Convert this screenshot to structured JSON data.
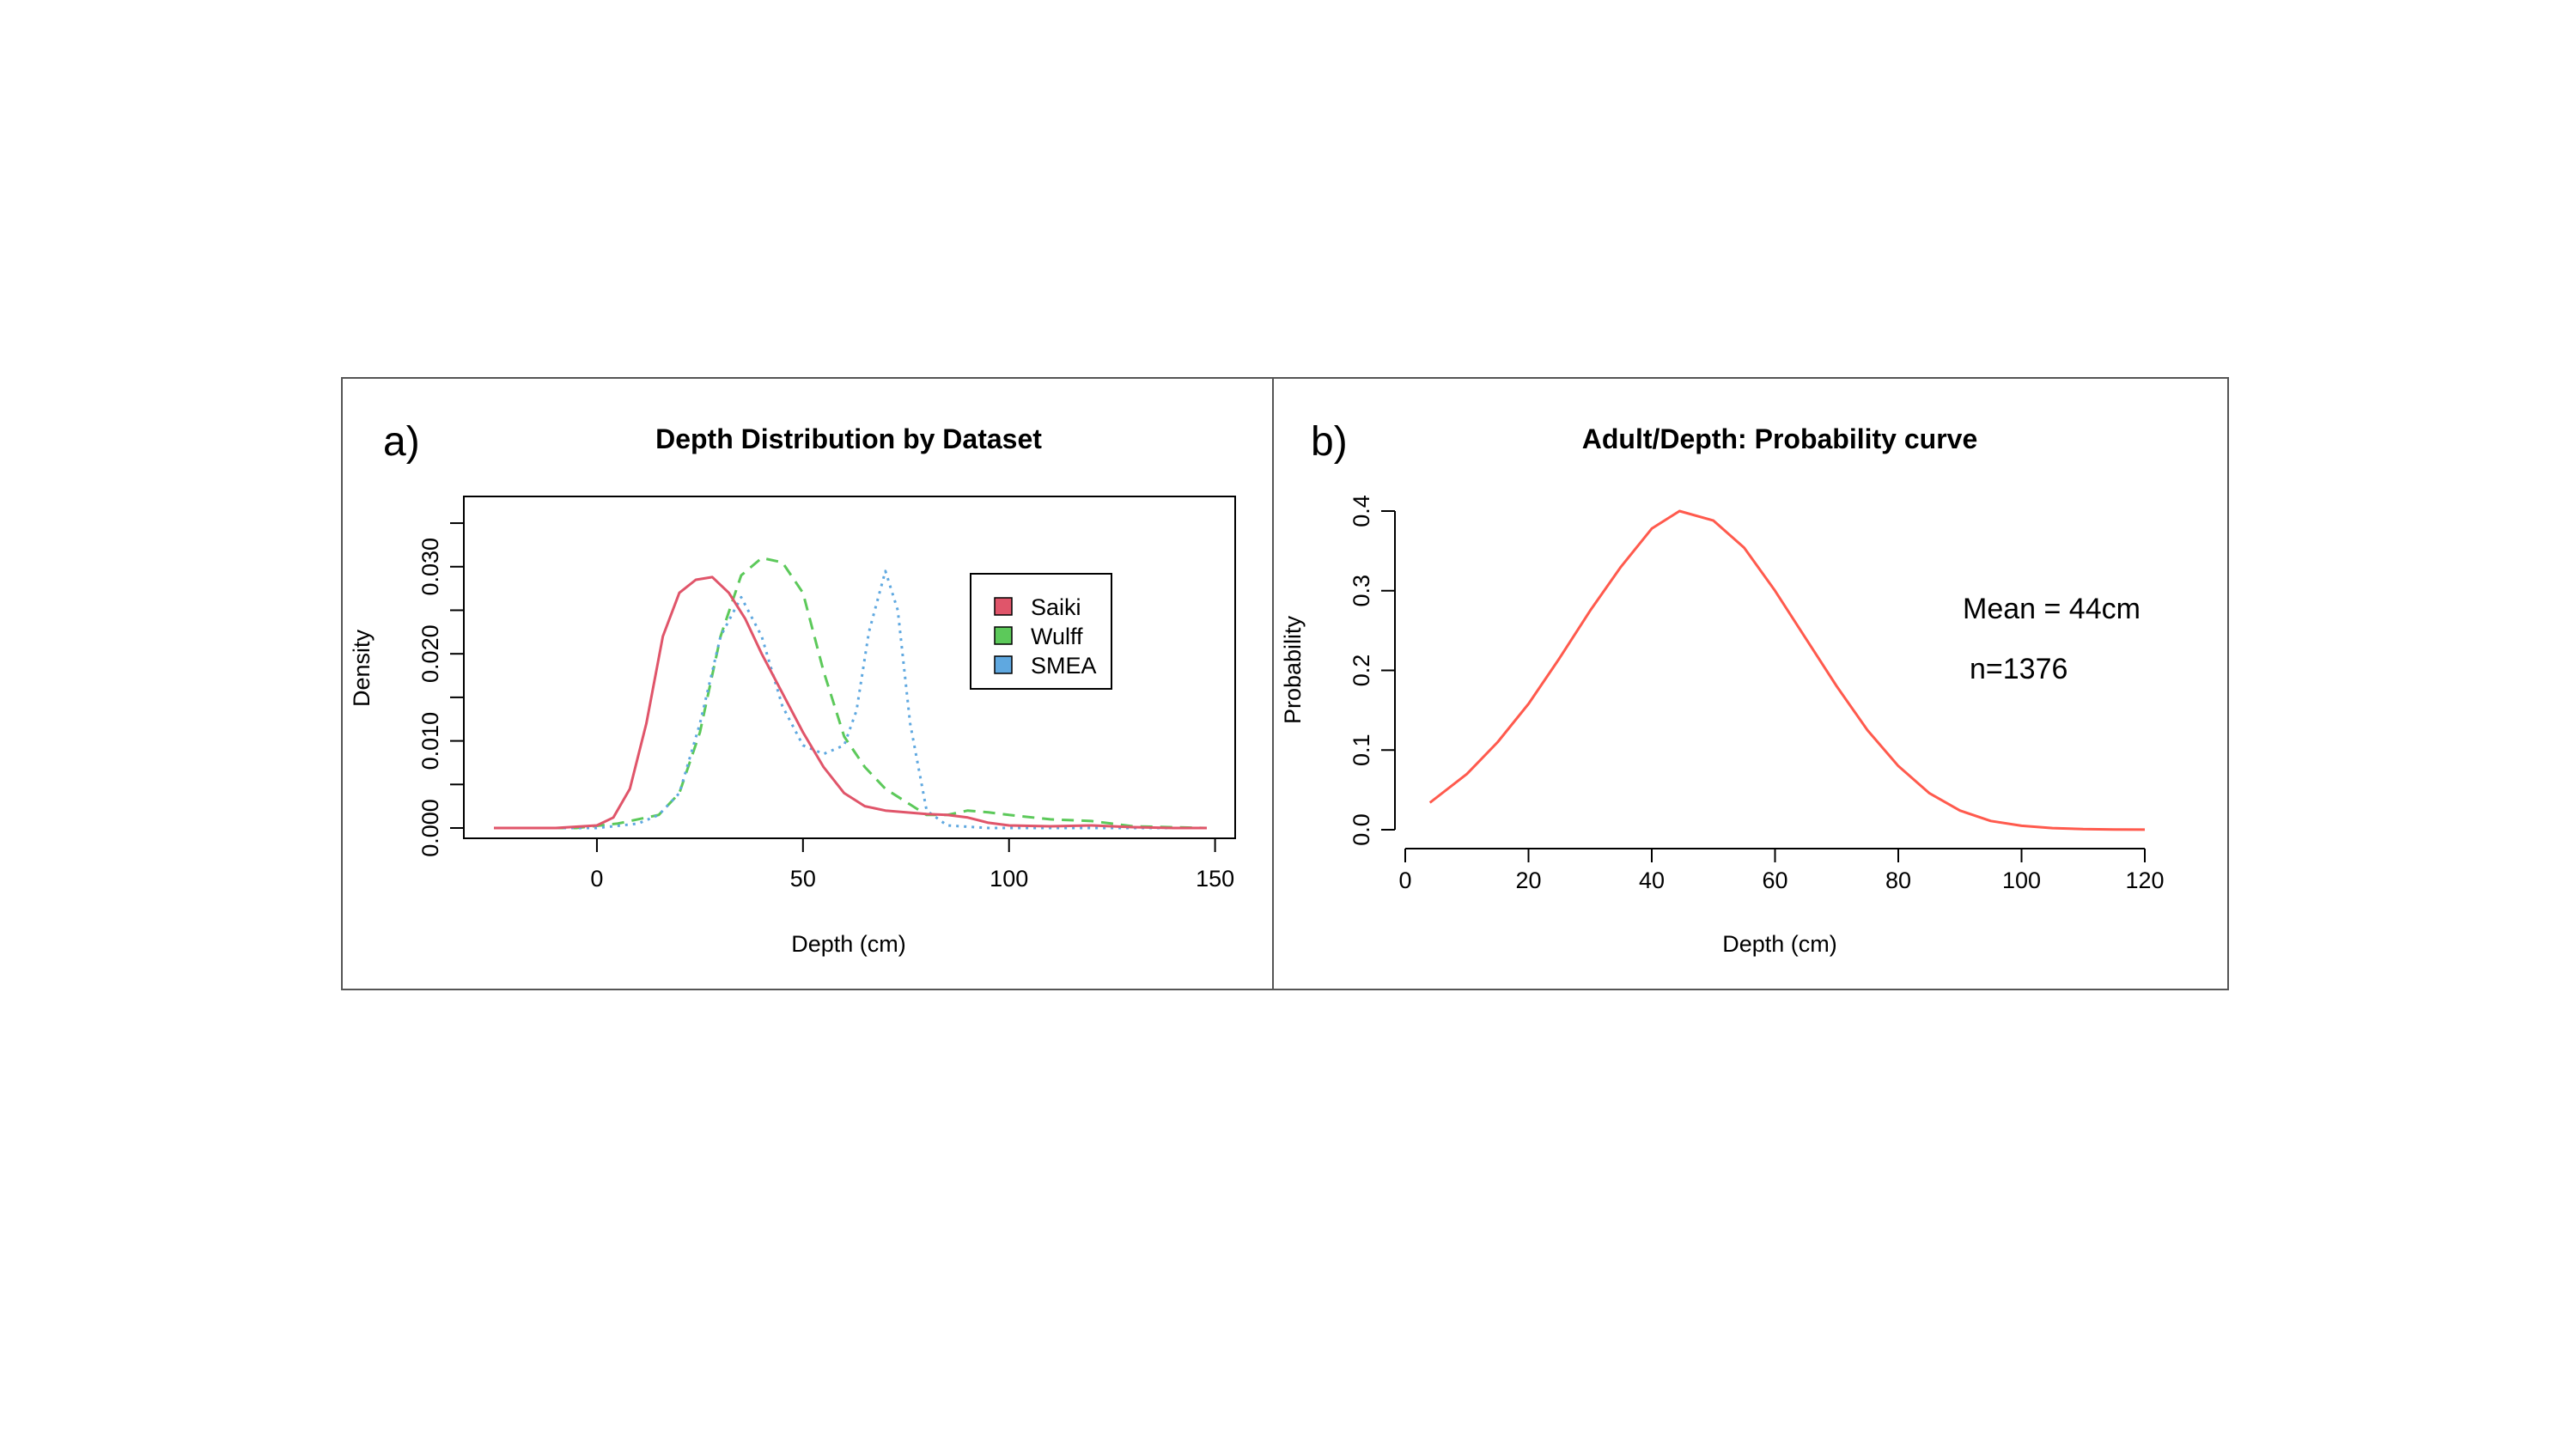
{
  "chart_data": [
    {
      "panel": "a)",
      "type": "line",
      "title": "Depth Distribution by Dataset",
      "xlabel": "Depth (cm)",
      "ylabel": "Density",
      "xlim": [
        -25,
        150
      ],
      "ylim": [
        0,
        0.0355
      ],
      "xticks": [
        0,
        50,
        100,
        150
      ],
      "yticks": [
        0.0,
        0.01,
        0.02,
        0.03
      ],
      "ytick_labels": [
        "0.000",
        "0.010",
        "0.020",
        "0.030"
      ],
      "grid": false,
      "legend_position": "top-right",
      "series": [
        {
          "name": "Saiki",
          "color": "#e0556a",
          "style": "solid",
          "x": [
            -25,
            -10,
            0,
            4,
            8,
            12,
            16,
            20,
            24,
            28,
            32,
            36,
            40,
            45,
            50,
            55,
            60,
            65,
            70,
            75,
            80,
            85,
            90,
            95,
            100,
            110,
            120,
            125,
            130,
            140,
            148
          ],
          "y": [
            0,
            0,
            0.0003,
            0.0012,
            0.0045,
            0.012,
            0.022,
            0.027,
            0.0285,
            0.0288,
            0.027,
            0.024,
            0.02,
            0.0155,
            0.011,
            0.007,
            0.004,
            0.0025,
            0.002,
            0.0018,
            0.0016,
            0.0015,
            0.0012,
            0.0006,
            0.0003,
            0.0002,
            0.0003,
            0.0002,
            0.0001,
            0,
            0
          ]
        },
        {
          "name": "Wulff",
          "color": "#5cc95a",
          "style": "dashed",
          "x": [
            -25,
            -5,
            5,
            15,
            20,
            25,
            30,
            35,
            40,
            45,
            50,
            55,
            60,
            65,
            70,
            75,
            80,
            85,
            90,
            95,
            100,
            110,
            120,
            125,
            130,
            148
          ],
          "y": [
            0,
            0,
            0.0005,
            0.0015,
            0.004,
            0.011,
            0.022,
            0.029,
            0.031,
            0.0305,
            0.027,
            0.018,
            0.0105,
            0.007,
            0.0045,
            0.003,
            0.0015,
            0.0015,
            0.002,
            0.0018,
            0.0015,
            0.001,
            0.0008,
            0.0005,
            0.0002,
            0
          ]
        },
        {
          "name": "SMEA",
          "color": "#5fa8e0",
          "style": "dotted",
          "x": [
            -25,
            0,
            10,
            15,
            20,
            25,
            30,
            35,
            40,
            45,
            50,
            55,
            60,
            63,
            66,
            70,
            73,
            76,
            80,
            85,
            95,
            110,
            148
          ],
          "y": [
            0,
            0,
            0.0005,
            0.0015,
            0.004,
            0.012,
            0.022,
            0.0265,
            0.022,
            0.014,
            0.0095,
            0.0085,
            0.0095,
            0.0135,
            0.0225,
            0.0295,
            0.025,
            0.012,
            0.002,
            0.0003,
            0,
            0,
            0
          ]
        }
      ]
    },
    {
      "panel": "b)",
      "type": "line",
      "title": "Adult/Depth: Probability curve",
      "xlabel": "Depth (cm)",
      "ylabel": "Probability",
      "xlim": [
        0,
        120
      ],
      "ylim": [
        0,
        0.4
      ],
      "xticks": [
        0,
        20,
        40,
        60,
        80,
        100,
        120
      ],
      "yticks": [
        0.0,
        0.1,
        0.2,
        0.3,
        0.4
      ],
      "ytick_labels": [
        "0.0",
        "0.1",
        "0.2",
        "0.3",
        "0.4"
      ],
      "grid": false,
      "series": [
        {
          "color": "#ff5a4d",
          "style": "solid",
          "x": [
            4,
            10,
            15,
            20,
            25,
            30,
            35,
            40,
            44.5,
            50,
            55,
            60,
            65,
            70,
            75,
            80,
            85,
            90,
            95,
            100,
            105,
            110,
            115,
            120
          ],
          "y": [
            0.034,
            0.07,
            0.11,
            0.158,
            0.215,
            0.275,
            0.33,
            0.378,
            0.4,
            0.388,
            0.354,
            0.3,
            0.24,
            0.18,
            0.125,
            0.08,
            0.046,
            0.024,
            0.011,
            0.005,
            0.002,
            0.0008,
            0.0003,
            0.0001
          ]
        }
      ],
      "annotations": [
        "Mean = 44cm",
        "n=1376"
      ]
    }
  ]
}
